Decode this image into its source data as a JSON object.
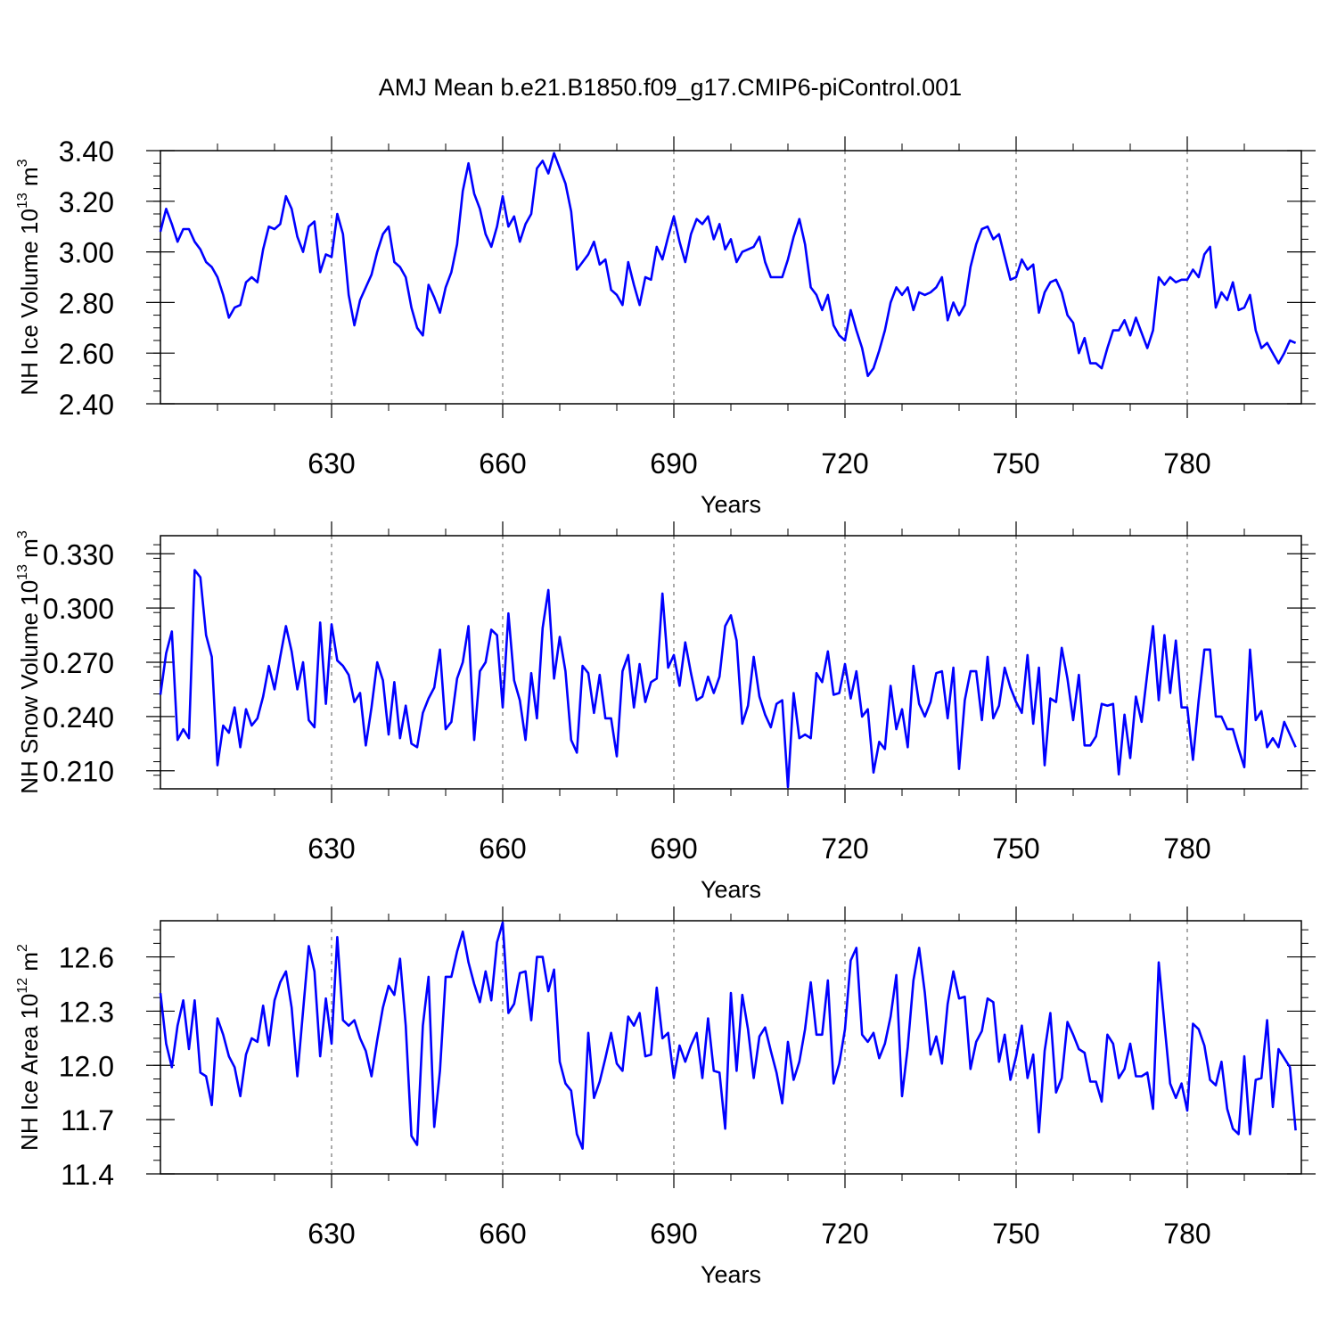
{
  "title": "AMJ Mean b.e21.B1850.f09_g17.CMIP6-piControl.001",
  "line_color": "#0000ff",
  "chart_data": [
    {
      "type": "line",
      "xlabel": "Years",
      "ylabel": "NH Ice Volume 10",
      "ylabel_sup": "13",
      "ylabel_unit": " m",
      "ylabel_unit_sup": "3",
      "xlim": [
        600,
        800
      ],
      "ylim": [
        2.4,
        3.4
      ],
      "xticks": [
        630,
        660,
        690,
        720,
        750,
        780
      ],
      "xtick_labels": [
        "630",
        "660",
        "690",
        "720",
        "750",
        "780"
      ],
      "yticks": [
        2.4,
        2.6,
        2.8,
        3.0,
        3.2,
        3.4
      ],
      "ytick_labels": [
        "2.40",
        "2.60",
        "2.80",
        "3.00",
        "3.20",
        "3.40"
      ],
      "grid": "dashed vertical at major x ticks",
      "x_start": 600,
      "values": [
        3.08,
        3.17,
        3.11,
        3.04,
        3.09,
        3.09,
        3.04,
        3.01,
        2.96,
        2.94,
        2.9,
        2.83,
        2.74,
        2.78,
        2.79,
        2.88,
        2.9,
        2.88,
        3.01,
        3.1,
        3.09,
        3.11,
        3.22,
        3.17,
        3.06,
        3.0,
        3.1,
        3.12,
        2.92,
        2.99,
        2.98,
        3.15,
        3.07,
        2.83,
        2.71,
        2.81,
        2.86,
        2.91,
        3.0,
        3.07,
        3.1,
        2.96,
        2.94,
        2.9,
        2.78,
        2.7,
        2.67,
        2.87,
        2.82,
        2.76,
        2.86,
        2.92,
        3.03,
        3.24,
        3.35,
        3.23,
        3.17,
        3.07,
        3.02,
        3.1,
        3.22,
        3.1,
        3.14,
        3.04,
        3.11,
        3.15,
        3.33,
        3.36,
        3.31,
        3.39,
        3.33,
        3.27,
        3.16,
        2.93,
        2.96,
        2.99,
        3.04,
        2.95,
        2.97,
        2.85,
        2.83,
        2.79,
        2.96,
        2.87,
        2.79,
        2.9,
        2.89,
        3.02,
        2.97,
        3.06,
        3.14,
        3.04,
        2.96,
        3.07,
        3.13,
        3.11,
        3.14,
        3.05,
        3.11,
        3.01,
        3.05,
        2.96,
        3.0,
        3.01,
        3.02,
        3.06,
        2.96,
        2.9,
        2.9,
        2.9,
        2.97,
        3.06,
        3.13,
        3.03,
        2.86,
        2.83,
        2.77,
        2.83,
        2.71,
        2.67,
        2.65,
        2.77,
        2.69,
        2.62,
        2.51,
        2.54,
        2.61,
        2.69,
        2.8,
        2.86,
        2.83,
        2.86,
        2.77,
        2.84,
        2.83,
        2.84,
        2.86,
        2.9,
        2.73,
        2.8,
        2.75,
        2.79,
        2.94,
        3.03,
        3.09,
        3.1,
        3.05,
        3.07,
        2.98,
        2.89,
        2.9,
        2.97,
        2.93,
        2.95,
        2.76,
        2.84,
        2.88,
        2.89,
        2.84,
        2.75,
        2.72,
        2.6,
        2.66,
        2.56,
        2.56,
        2.54,
        2.62,
        2.69,
        2.69,
        2.73,
        2.67,
        2.74,
        2.68,
        2.62,
        2.69,
        2.9,
        2.87,
        2.9,
        2.88,
        2.89,
        2.89,
        2.93,
        2.9,
        2.99,
        3.02,
        2.78,
        2.84,
        2.81,
        2.88,
        2.77,
        2.78,
        2.83,
        2.69,
        2.62,
        2.64,
        2.6,
        2.56,
        2.6,
        2.65,
        2.64
      ]
    },
    {
      "type": "line",
      "xlabel": "Years",
      "ylabel": "NH Snow Volume 10",
      "ylabel_sup": "13",
      "ylabel_unit": " m",
      "ylabel_unit_sup": "3",
      "xlim": [
        600,
        800
      ],
      "ylim": [
        0.2,
        0.34
      ],
      "xticks": [
        630,
        660,
        690,
        720,
        750,
        780
      ],
      "xtick_labels": [
        "630",
        "660",
        "690",
        "720",
        "750",
        "780"
      ],
      "yticks": [
        0.21,
        0.24,
        0.27,
        0.3,
        0.33
      ],
      "ytick_labels": [
        "0.210",
        "0.240",
        "0.270",
        "0.300",
        "0.330"
      ],
      "grid": "dashed vertical at major x ticks",
      "x_start": 600,
      "values": [
        0.252,
        0.275,
        0.287,
        0.227,
        0.233,
        0.228,
        0.321,
        0.317,
        0.285,
        0.273,
        0.213,
        0.235,
        0.231,
        0.245,
        0.223,
        0.244,
        0.235,
        0.239,
        0.251,
        0.268,
        0.255,
        0.273,
        0.29,
        0.276,
        0.255,
        0.27,
        0.238,
        0.234,
        0.292,
        0.247,
        0.291,
        0.271,
        0.268,
        0.263,
        0.248,
        0.253,
        0.224,
        0.245,
        0.27,
        0.26,
        0.23,
        0.259,
        0.228,
        0.246,
        0.225,
        0.223,
        0.242,
        0.25,
        0.256,
        0.277,
        0.233,
        0.237,
        0.261,
        0.27,
        0.29,
        0.227,
        0.265,
        0.27,
        0.288,
        0.285,
        0.245,
        0.297,
        0.26,
        0.249,
        0.227,
        0.264,
        0.239,
        0.289,
        0.31,
        0.261,
        0.284,
        0.265,
        0.227,
        0.22,
        0.268,
        0.264,
        0.242,
        0.263,
        0.239,
        0.239,
        0.218,
        0.265,
        0.274,
        0.245,
        0.269,
        0.248,
        0.259,
        0.261,
        0.308,
        0.267,
        0.274,
        0.257,
        0.281,
        0.264,
        0.249,
        0.251,
        0.262,
        0.253,
        0.262,
        0.29,
        0.296,
        0.282,
        0.236,
        0.246,
        0.273,
        0.251,
        0.241,
        0.234,
        0.247,
        0.249,
        0.201,
        0.253,
        0.228,
        0.23,
        0.228,
        0.264,
        0.259,
        0.276,
        0.252,
        0.253,
        0.269,
        0.25,
        0.265,
        0.24,
        0.244,
        0.209,
        0.226,
        0.222,
        0.257,
        0.233,
        0.244,
        0.223,
        0.268,
        0.247,
        0.24,
        0.248,
        0.264,
        0.265,
        0.239,
        0.267,
        0.211,
        0.249,
        0.265,
        0.265,
        0.238,
        0.273,
        0.239,
        0.246,
        0.267,
        0.256,
        0.248,
        0.242,
        0.274,
        0.236,
        0.267,
        0.213,
        0.25,
        0.248,
        0.278,
        0.261,
        0.238,
        0.263,
        0.224,
        0.224,
        0.229,
        0.247,
        0.246,
        0.247,
        0.208,
        0.241,
        0.217,
        0.251,
        0.237,
        0.264,
        0.29,
        0.249,
        0.285,
        0.253,
        0.282,
        0.245,
        0.245,
        0.216,
        0.249,
        0.277,
        0.277,
        0.24,
        0.24,
        0.233,
        0.233,
        0.222,
        0.212,
        0.277,
        0.238,
        0.243,
        0.223,
        0.228,
        0.223,
        0.237,
        0.23,
        0.223
      ]
    },
    {
      "type": "line",
      "xlabel": "Years",
      "ylabel": "NH Ice Area 10",
      "ylabel_sup": "12",
      "ylabel_unit": " m",
      "ylabel_unit_sup": "2",
      "xlim": [
        600,
        800
      ],
      "ylim": [
        11.4,
        12.8
      ],
      "xticks": [
        630,
        660,
        690,
        720,
        750,
        780
      ],
      "xtick_labels": [
        "630",
        "660",
        "690",
        "720",
        "750",
        "780"
      ],
      "yticks": [
        11.4,
        11.7,
        12.0,
        12.3,
        12.6
      ],
      "ytick_labels": [
        "11.4",
        "11.7",
        "12.0",
        "12.3",
        "12.6"
      ],
      "grid": "dashed vertical at major x ticks",
      "x_start": 600,
      "values": [
        12.4,
        12.12,
        11.99,
        12.22,
        12.36,
        12.09,
        12.36,
        11.96,
        11.94,
        11.78,
        12.26,
        12.17,
        12.05,
        11.99,
        11.83,
        12.06,
        12.15,
        12.13,
        12.33,
        12.11,
        12.36,
        12.46,
        12.52,
        12.32,
        11.94,
        12.3,
        12.66,
        12.52,
        12.05,
        12.37,
        12.12,
        12.71,
        12.25,
        12.22,
        12.25,
        12.15,
        12.08,
        11.94,
        12.14,
        12.32,
        12.44,
        12.39,
        12.59,
        12.22,
        11.61,
        11.56,
        12.22,
        12.49,
        11.66,
        11.97,
        12.49,
        12.49,
        12.63,
        12.74,
        12.57,
        12.45,
        12.35,
        12.52,
        12.36,
        12.68,
        12.79,
        12.29,
        12.34,
        12.51,
        12.52,
        12.25,
        12.6,
        12.6,
        12.41,
        12.53,
        12.02,
        11.9,
        11.86,
        11.62,
        11.54,
        12.18,
        11.82,
        11.91,
        12.04,
        12.18,
        12.01,
        11.97,
        12.27,
        12.22,
        12.29,
        12.05,
        12.06,
        12.43,
        12.15,
        12.18,
        11.93,
        12.11,
        12.02,
        12.11,
        12.18,
        11.93,
        12.26,
        11.97,
        11.96,
        11.65,
        12.4,
        11.97,
        12.39,
        12.2,
        11.93,
        12.16,
        12.21,
        12.08,
        11.96,
        11.79,
        12.13,
        11.92,
        12.02,
        12.2,
        12.46,
        12.17,
        12.17,
        12.47,
        11.9,
        12.01,
        12.2,
        12.58,
        12.65,
        12.17,
        12.13,
        12.18,
        12.04,
        12.12,
        12.27,
        12.5,
        11.83,
        12.1,
        12.47,
        12.65,
        12.4,
        12.06,
        12.16,
        12.01,
        12.34,
        12.52,
        12.37,
        12.38,
        11.98,
        12.13,
        12.19,
        12.37,
        12.35,
        12.02,
        12.17,
        11.92,
        12.05,
        12.22,
        11.93,
        12.06,
        11.63,
        12.08,
        12.29,
        11.85,
        11.93,
        12.24,
        12.17,
        12.09,
        12.07,
        11.91,
        11.91,
        11.8,
        12.17,
        12.12,
        11.93,
        11.98,
        12.12,
        11.94,
        11.94,
        11.96,
        11.76,
        12.57,
        12.23,
        11.9,
        11.82,
        11.9,
        11.75,
        12.23,
        12.2,
        12.11,
        11.92,
        11.89,
        12.02,
        11.76,
        11.65,
        11.62,
        12.05,
        11.62,
        11.92,
        11.93,
        12.25,
        11.77,
        12.09,
        12.04,
        11.99,
        11.64
      ]
    }
  ]
}
